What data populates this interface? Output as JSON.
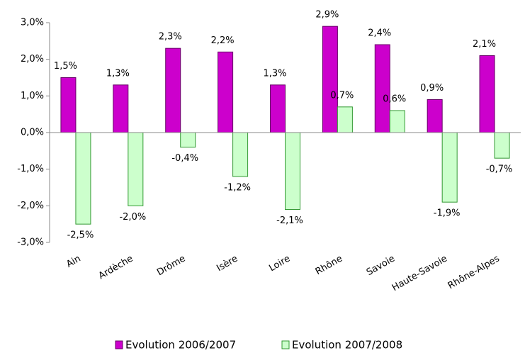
{
  "chart_data": {
    "type": "bar",
    "categories": [
      "Ain",
      "Ardèche",
      "Drôme",
      "Isère",
      "Loire",
      "Rhône",
      "Savoie",
      "Haute-Savoie",
      "Rhône-Alpes"
    ],
    "series": [
      {
        "name": "Evolution 2006/2007",
        "color": "#cc00cc",
        "values": [
          1.5,
          1.3,
          2.3,
          2.2,
          1.3,
          2.9,
          2.4,
          0.9,
          2.1
        ],
        "value_labels": [
          "1,5%",
          "1,3%",
          "2,3%",
          "2,2%",
          "1,3%",
          "2,9%",
          "2,4%",
          "0,9%",
          "2,1%"
        ]
      },
      {
        "name": "Evolution 2007/2008",
        "color": "#ccffcc",
        "values": [
          -2.5,
          -2.0,
          -0.4,
          -1.2,
          -2.1,
          0.7,
          0.6,
          -1.9,
          -0.7
        ],
        "value_labels": [
          "-2,5%",
          "-2,0%",
          "-0,4%",
          "-1,2%",
          "-2,1%",
          "0,7%",
          "0,6%",
          "-1,9%",
          "-0,7%"
        ]
      }
    ],
    "ylim": [
      -3,
      3
    ],
    "yticks": [
      {
        "value": -3,
        "label": "-3,0%"
      },
      {
        "value": -2,
        "label": "-2,0%"
      },
      {
        "value": -1,
        "label": "-1,0%"
      },
      {
        "value": 0,
        "label": "0,0%"
      },
      {
        "value": 1,
        "label": "1,0%"
      },
      {
        "value": 2,
        "label": "2,0%"
      },
      {
        "value": 3,
        "label": "3,0%"
      }
    ],
    "grid": false,
    "legend": "bottom"
  }
}
